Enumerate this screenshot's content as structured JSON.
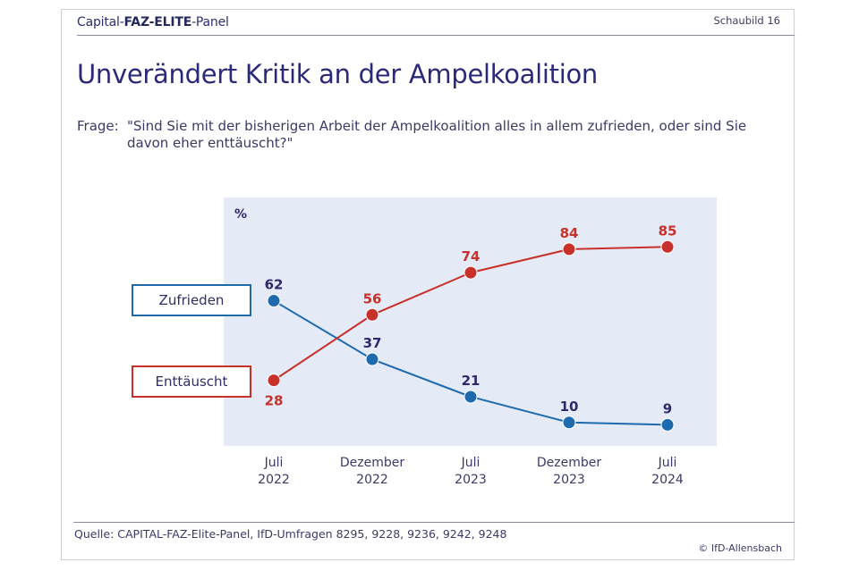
{
  "header": {
    "brand_part1": "Capital-",
    "brand_part2": "FAZ-ELITE",
    "brand_part3": "-Panel",
    "figure_label": "Schaubild 16"
  },
  "title": "Unverändert Kritik an der Ampelkoalition",
  "question": {
    "label": "Frage:",
    "text": "\"Sind Sie mit der bisherigen Arbeit der Ampelkoalition alles in allem zufrieden, oder sind Sie davon eher enttäuscht?\""
  },
  "colors": {
    "zufrieden": "#1e6aad",
    "enttaeuscht": "#c8302a",
    "panel_bg": "#e4ebf7",
    "label_dark": "#2b2a6b",
    "label_red": "#c8302a"
  },
  "chart_data": {
    "type": "line",
    "title": "Unverändert Kritik an der Ampelkoalition",
    "ylabel": "%",
    "xlabel": "",
    "ylim": [
      0,
      100
    ],
    "grid": false,
    "categories": [
      [
        "Juli",
        "2022"
      ],
      [
        "Dezember",
        "2022"
      ],
      [
        "Juli",
        "2023"
      ],
      [
        "Dezember",
        "2023"
      ],
      [
        "Juli",
        "2024"
      ]
    ],
    "series": [
      {
        "name": "Zufrieden",
        "key": "zufrieden",
        "values": [
          62,
          37,
          21,
          10,
          9
        ],
        "label_position": "above"
      },
      {
        "name": "Enttäuscht",
        "key": "enttaeuscht",
        "values": [
          28,
          56,
          74,
          84,
          85
        ],
        "label_position": "mixed"
      }
    ],
    "legend": "left"
  },
  "footer": {
    "source": "Quelle: CAPITAL-FAZ-Elite-Panel, IfD-Umfragen 8295, 9228, 9236, 9242, 9248",
    "copyright": "© IfD-Allensbach"
  }
}
